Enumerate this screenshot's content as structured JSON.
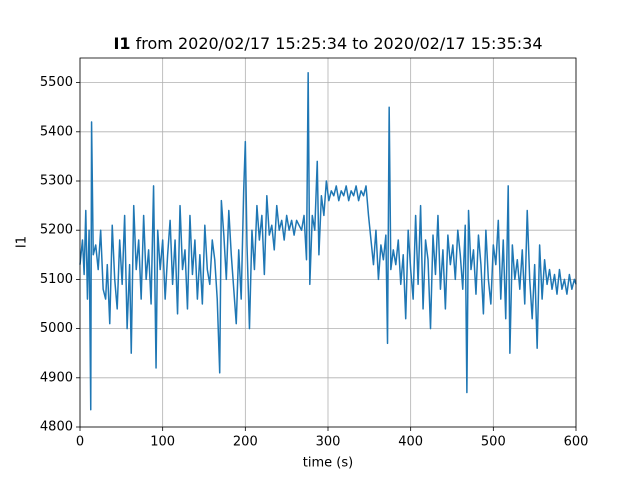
{
  "chart_data": {
    "type": "line",
    "title": [
      "I1",
      "from 2020/02/17 15:25:34 to 2020/02/17 15:35:34"
    ],
    "xlabel": "time (s)",
    "ylabel": "I1",
    "xlim": [
      0,
      600
    ],
    "xticks": [
      0,
      100,
      200,
      300,
      400,
      500,
      600
    ],
    "ylim": [
      4800,
      5550
    ],
    "yticks": [
      4800,
      4900,
      5000,
      5100,
      5200,
      5300,
      5400,
      5500
    ],
    "grid": true,
    "series": [
      {
        "color": "#1f77b4",
        "x": [
          0,
          3,
          5,
          7,
          9,
          11,
          13,
          14,
          16,
          19,
          22,
          25,
          28,
          31,
          33,
          36,
          39,
          42,
          45,
          48,
          51,
          54,
          57,
          60,
          62,
          65,
          68,
          71,
          74,
          77,
          80,
          83,
          86,
          89,
          92,
          94,
          97,
          100,
          103,
          106,
          109,
          112,
          115,
          118,
          121,
          124,
          127,
          130,
          133,
          136,
          139,
          142,
          145,
          148,
          151,
          154,
          157,
          160,
          163,
          166,
          169,
          171,
          174,
          177,
          180,
          183,
          186,
          189,
          192,
          195,
          198,
          200,
          202,
          205,
          208,
          211,
          214,
          217,
          220,
          223,
          226,
          229,
          232,
          235,
          238,
          241,
          244,
          247,
          250,
          253,
          256,
          259,
          262,
          265,
          268,
          271,
          274,
          276,
          278,
          281,
          284,
          287,
          289,
          292,
          295,
          298,
          301,
          304,
          307,
          310,
          313,
          316,
          319,
          322,
          325,
          328,
          331,
          334,
          337,
          340,
          343,
          346,
          349,
          352,
          355,
          358,
          361,
          364,
          367,
          370,
          372,
          374,
          376,
          379,
          382,
          385,
          388,
          391,
          394,
          397,
          400,
          403,
          406,
          409,
          412,
          415,
          418,
          421,
          424,
          427,
          430,
          433,
          436,
          439,
          442,
          445,
          448,
          451,
          454,
          457,
          460,
          463,
          466,
          468,
          470,
          473,
          476,
          479,
          482,
          485,
          488,
          491,
          494,
          497,
          500,
          503,
          506,
          509,
          512,
          515,
          518,
          520,
          523,
          526,
          529,
          532,
          535,
          538,
          541,
          544,
          547,
          550,
          553,
          556,
          559,
          562,
          565,
          568,
          571,
          574,
          577,
          580,
          583,
          586,
          589,
          592,
          595,
          598,
          600
        ],
        "values": [
          5130,
          5180,
          5110,
          5240,
          5060,
          5200,
          4835,
          5420,
          5150,
          5170,
          5120,
          5200,
          5080,
          5060,
          5130,
          5010,
          5210,
          5100,
          5040,
          5180,
          5090,
          5230,
          5000,
          5130,
          4950,
          5250,
          5120,
          5180,
          5060,
          5230,
          5100,
          5160,
          5050,
          5290,
          4920,
          5200,
          5120,
          5180,
          5060,
          5150,
          5220,
          5090,
          5180,
          5030,
          5250,
          5120,
          5160,
          5040,
          5230,
          5110,
          5180,
          5060,
          5150,
          5050,
          5210,
          5120,
          5090,
          5180,
          5140,
          5060,
          4910,
          5260,
          5190,
          5100,
          5240,
          5150,
          5080,
          5010,
          5160,
          5060,
          5280,
          5380,
          5170,
          5000,
          5200,
          5120,
          5250,
          5180,
          5230,
          5110,
          5270,
          5190,
          5210,
          5160,
          5250,
          5200,
          5220,
          5180,
          5230,
          5200,
          5220,
          5190,
          5220,
          5210,
          5200,
          5230,
          5140,
          5520,
          5090,
          5230,
          5200,
          5340,
          5150,
          5270,
          5230,
          5300,
          5260,
          5280,
          5270,
          5290,
          5260,
          5280,
          5270,
          5290,
          5260,
          5280,
          5270,
          5290,
          5260,
          5280,
          5270,
          5290,
          5230,
          5180,
          5130,
          5200,
          5100,
          5170,
          5140,
          5190,
          4970,
          5450,
          5120,
          5160,
          5130,
          5180,
          5090,
          5150,
          5020,
          5200,
          5120,
          5060,
          5230,
          5090,
          5250,
          5040,
          5180,
          5140,
          5000,
          5190,
          5110,
          5230,
          5080,
          5160,
          5040,
          5190,
          5130,
          5170,
          5100,
          5200,
          5150,
          5080,
          5210,
          4870,
          5240,
          5120,
          5160,
          5070,
          5190,
          5130,
          5030,
          5200,
          5100,
          5050,
          5170,
          5130,
          5220,
          5060,
          5180,
          5020,
          5290,
          4950,
          5170,
          5100,
          5140,
          5080,
          5160,
          5050,
          5240,
          5100,
          5020,
          5130,
          4960,
          5170,
          5060,
          5140,
          5090,
          5120,
          5080,
          5110,
          5070,
          5120,
          5080,
          5100,
          5070,
          5110,
          5080,
          5100,
          5090
        ]
      }
    ]
  }
}
